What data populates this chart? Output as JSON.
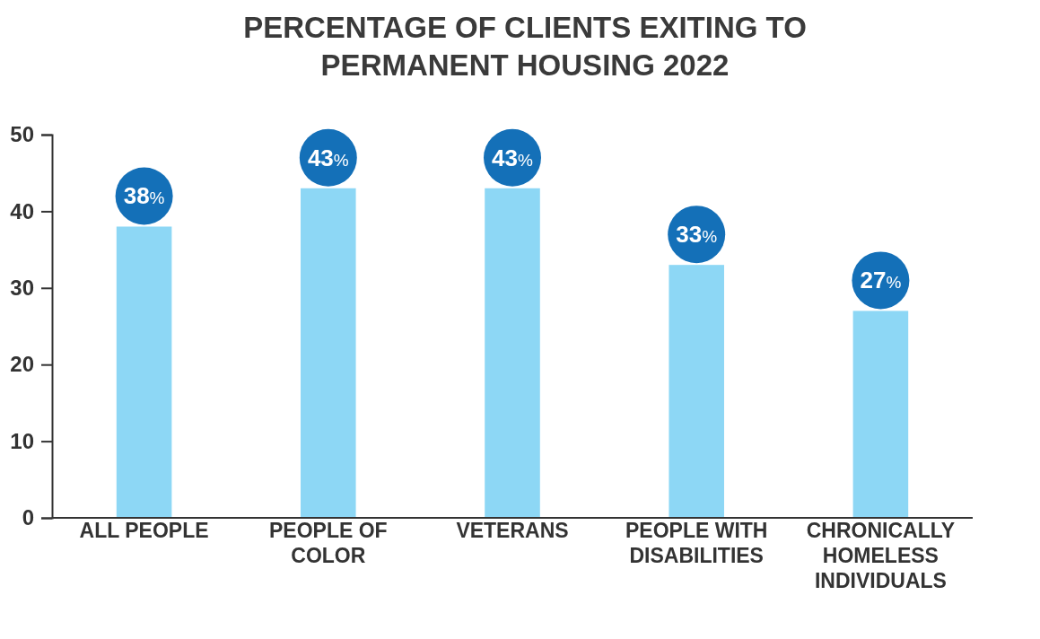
{
  "chart_data": {
    "type": "bar",
    "title": "PERCENTAGE OF CLIENTS EXITING TO PERMANENT HOUSING 2022",
    "categories": [
      "ALL PEOPLE",
      "PEOPLE OF COLOR",
      "VETERANS",
      "PEOPLE WITH DISABILITIES",
      "CHRONICALLY HOMELESS INDIVIDUALS"
    ],
    "values": [
      38,
      43,
      43,
      33,
      27
    ],
    "value_labels": [
      "38%",
      "43%",
      "43%",
      "33%",
      "27%"
    ],
    "color": "#8dd7f5",
    "ylim": [
      0,
      50
    ],
    "yticks": [
      0,
      10,
      20,
      30,
      40,
      50
    ],
    "grid": false
  }
}
